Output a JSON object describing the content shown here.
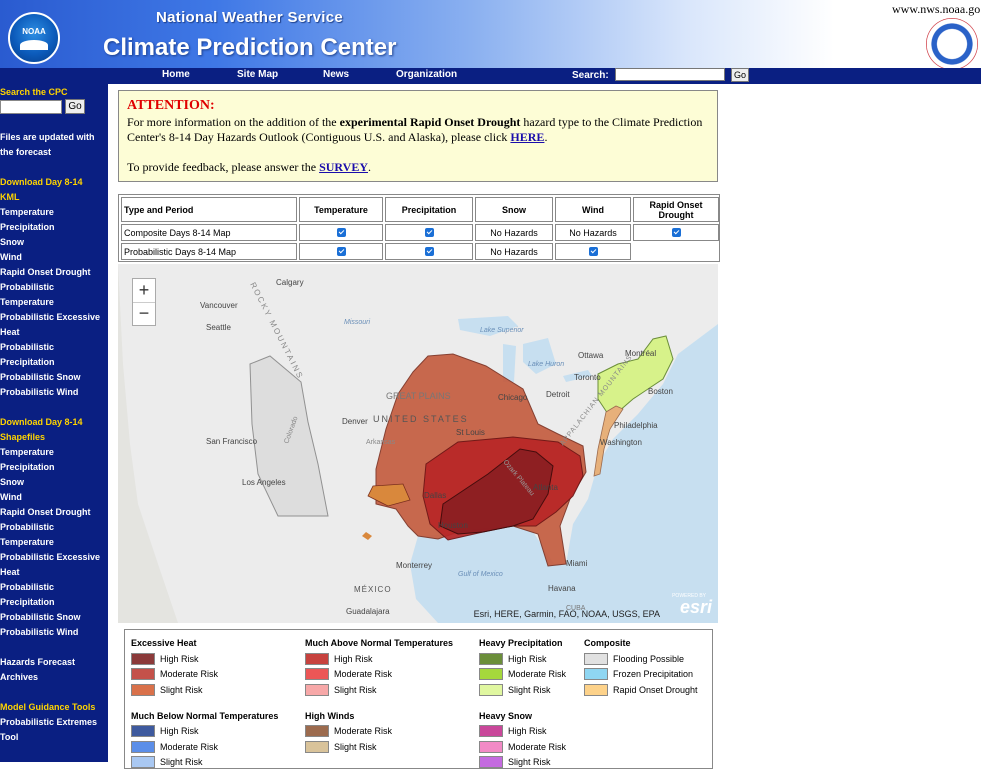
{
  "header": {
    "agency": "National Weather Service",
    "center": "Climate Prediction Center",
    "url": "www.nws.noaa.go",
    "noaa_logo_text": "NOAA"
  },
  "nav": {
    "links": [
      "Home",
      "Site Map",
      "News",
      "Organization"
    ],
    "search_label": "Search:",
    "search_go": "Go"
  },
  "sidebar": {
    "search_title": "Search the CPC",
    "search_go": "Go",
    "updated_note": [
      "Files are updated with",
      "the forecast"
    ],
    "kml_heading": [
      "Download Day 8-14",
      "KML"
    ],
    "kml_items": [
      "Temperature",
      "Precipitation",
      "Snow",
      "Wind",
      "Rapid Onset Drought",
      "Probabilistic",
      "Temperature",
      "Probabilistic Excessive",
      "Heat",
      "Probabilistic",
      "Precipitation",
      "Probabilistic Snow",
      "Probabilistic Wind"
    ],
    "shp_heading": [
      "Download Day 8-14",
      "Shapefiles"
    ],
    "shp_items": [
      "Temperature",
      "Precipitation",
      "Snow",
      "Wind",
      "Rapid Onset Drought",
      "Probabilistic",
      "Temperature",
      "Probabilistic Excessive",
      "Heat",
      "Probabilistic",
      "Precipitation",
      "Probabilistic Snow",
      "Probabilistic Wind"
    ],
    "archive_link": [
      "Hazards Forecast",
      "Archives"
    ],
    "tools_heading": "Model Guidance Tools",
    "tools_items": [
      "Probabilistic Extremes",
      "Tool"
    ]
  },
  "attention": {
    "heading": "ATTENTION:",
    "p1_pre": "For more information on the addition of the ",
    "p1_bold": "experimental Rapid Onset Drought",
    "p1_post": " hazard type to the Climate Prediction Center's 8-14 Day Hazards Outlook (Contiguous U.S. and Alaska), please click ",
    "p1_link": "HERE",
    "p1_end": ".",
    "p2_pre": "To provide feedback, please answer the ",
    "p2_link": "SURVEY",
    "p2_end": "."
  },
  "table": {
    "headers": [
      "Type and Period",
      "Temperature",
      "Precipitation",
      "Snow",
      "Wind",
      "Rapid Onset Drought"
    ],
    "rows": [
      {
        "label": "Composite Days 8-14 Map",
        "temperature": "checked",
        "precipitation": "checked",
        "snow": "No Hazards",
        "wind": "No Hazards",
        "drought": "checked"
      },
      {
        "label": "Probabilistic Days 8-14 Map",
        "temperature": "checked",
        "precipitation": "checked",
        "snow": "No Hazards",
        "wind": "checked",
        "drought": ""
      }
    ]
  },
  "map": {
    "zoom_in": "+",
    "zoom_out": "−",
    "attribution": "Esri, HERE, Garmin, FAO, NOAA, USGS, EPA",
    "esri_logo": "esri",
    "esri_powered": "POWERED BY",
    "place_labels": [
      "Calgary",
      "Vancouver",
      "Seattle",
      "Missouri",
      "Lake Superior",
      "Ottawa",
      "Montréal",
      "Lake Huron",
      "Toronto",
      "Boston",
      "Chicago",
      "Detroit",
      "GREAT PLAINS",
      "UNITED STATES",
      "Denver",
      "St Louis",
      "Philadelphia",
      "Washington",
      "San Francisco",
      "Los Angeles",
      "Atlanta",
      "Houston",
      "Dallas",
      "Monterrey",
      "Miami",
      "Gulf of Mexico",
      "MÉXICO",
      "Havana",
      "Guadalajara",
      "CUBA",
      "ROCKY MOUNTAINS",
      "APPALACHIAN MOUNTAINS",
      "Arkansas",
      "Colorado",
      "Ozark Plateau"
    ]
  },
  "legend": {
    "groups": [
      {
        "title": "Excessive Heat",
        "items": [
          {
            "label": "High Risk",
            "color": "#8b3a3a"
          },
          {
            "label": "Moderate Risk",
            "color": "#c4514a"
          },
          {
            "label": "Slight Risk",
            "color": "#d9714a"
          }
        ]
      },
      {
        "title": "Much Above Normal Temperatures",
        "items": [
          {
            "label": "High Risk",
            "color": "#c7423e"
          },
          {
            "label": "Moderate Risk",
            "color": "#ec5656"
          },
          {
            "label": "Slight Risk",
            "color": "#f7a8a8"
          }
        ]
      },
      {
        "title": "Heavy Precipitation",
        "items": [
          {
            "label": "High Risk",
            "color": "#6b8e3a"
          },
          {
            "label": "Moderate Risk",
            "color": "#a5d83c"
          },
          {
            "label": "Slight Risk",
            "color": "#e0f7a0"
          }
        ]
      },
      {
        "title": "Composite",
        "items": [
          {
            "label": "Flooding Possible",
            "color": "#e1e1e1"
          },
          {
            "label": "Frozen Precipitation",
            "color": "#8fd6f2"
          },
          {
            "label": "Rapid Onset Drought",
            "color": "#fdd28a"
          }
        ]
      },
      {
        "title": "Much Below Normal Temperatures",
        "items": [
          {
            "label": "High Risk",
            "color": "#3e5a9e"
          },
          {
            "label": "Moderate Risk",
            "color": "#5b8ee8"
          },
          {
            "label": "Slight Risk",
            "color": "#a9c8f2"
          }
        ]
      },
      {
        "title": "High Winds",
        "items": [
          {
            "label": "Moderate Risk",
            "color": "#9c6b4e"
          },
          {
            "label": "Slight Risk",
            "color": "#d9c39a"
          }
        ]
      },
      {
        "title": "Heavy Snow",
        "items": [
          {
            "label": "High Risk",
            "color": "#c9479a"
          },
          {
            "label": "Moderate Risk",
            "color": "#f28ac6"
          },
          {
            "label": "Slight Risk",
            "color": "#c46ae0"
          }
        ]
      }
    ]
  }
}
